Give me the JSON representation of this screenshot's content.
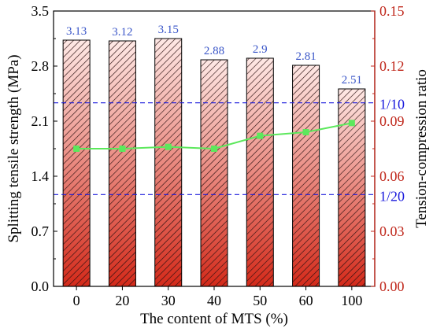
{
  "chart_data": {
    "type": "bar",
    "categories": [
      "0",
      "20",
      "30",
      "40",
      "50",
      "60",
      "100"
    ],
    "series": [
      {
        "axis": "left",
        "type": "bar",
        "values": [
          3.13,
          3.12,
          3.15,
          2.88,
          2.9,
          2.81,
          2.51
        ]
      },
      {
        "axis": "right",
        "type": "line",
        "values": [
          0.075,
          0.075,
          0.076,
          0.075,
          0.082,
          0.084,
          0.089
        ]
      }
    ],
    "bar_labels": [
      "3.13",
      "3.12",
      "3.15",
      "2.88",
      "2.9",
      "2.81",
      "2.51"
    ],
    "xlabel": "The content of MTS (%)",
    "ylabel": "Splitting tensile strength (MPa)",
    "ylabel_right": "Tension-compression ratio",
    "ylim": [
      0,
      3.5
    ],
    "ylim_right": [
      0,
      0.15
    ],
    "yticks": [
      "0.0",
      "0.7",
      "1.4",
      "2.1",
      "2.8",
      "3.5"
    ],
    "yticks_right": [
      "0.00",
      "0.03",
      "0.06",
      "0.09",
      "0.12",
      "0.15"
    ],
    "reference_lines": [
      {
        "label": "1/10",
        "value": 0.1
      },
      {
        "label": "1/20",
        "value": 0.05
      }
    ],
    "colors": {
      "bar_top": "#ffe9e6",
      "bar_bottom": "#d42a1a",
      "bar_hatch": "#2a1010",
      "bar_label": "#3a56c8",
      "line": "#5ce85c",
      "reference": "#1a1adc",
      "right_axis": "#c0281c"
    }
  }
}
